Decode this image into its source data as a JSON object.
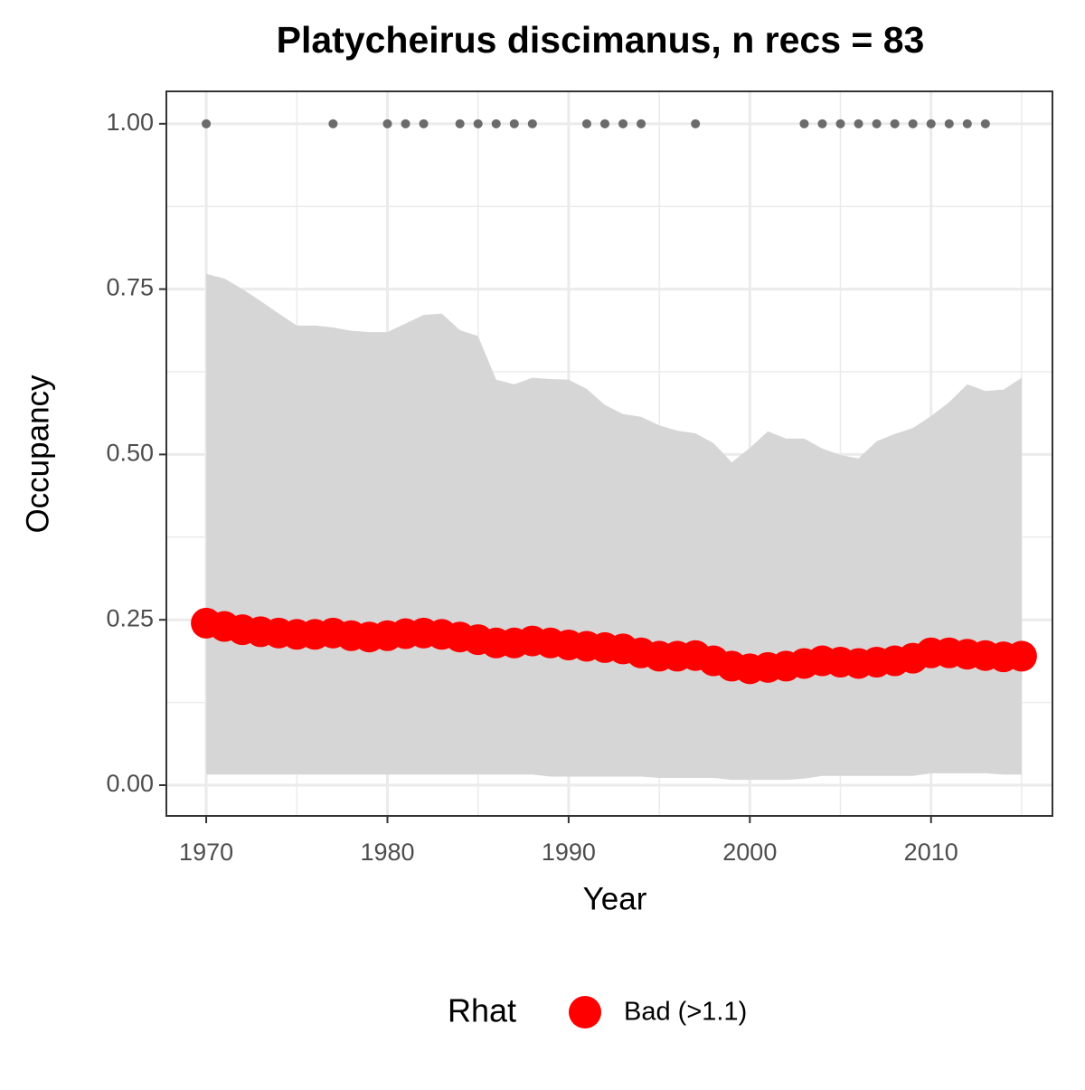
{
  "chart_data": {
    "type": "line",
    "title": "Platycheirus discimanus, n recs = 83",
    "x_label": "Year",
    "y_label": "Occupancy",
    "x": [
      1970,
      1971,
      1972,
      1973,
      1974,
      1975,
      1976,
      1977,
      1978,
      1979,
      1980,
      1981,
      1982,
      1983,
      1984,
      1985,
      1986,
      1987,
      1988,
      1989,
      1990,
      1991,
      1992,
      1993,
      1994,
      1995,
      1996,
      1997,
      1998,
      1999,
      2000,
      2001,
      2002,
      2003,
      2004,
      2005,
      2006,
      2007,
      2008,
      2009,
      2010,
      2011,
      2012,
      2013,
      2014,
      2015
    ],
    "series": [
      {
        "name": "Bad (>1.1)",
        "color": "#ff0000",
        "values": [
          0.245,
          0.24,
          0.235,
          0.232,
          0.23,
          0.228,
          0.228,
          0.23,
          0.226,
          0.224,
          0.226,
          0.229,
          0.23,
          0.228,
          0.224,
          0.22,
          0.215,
          0.215,
          0.218,
          0.215,
          0.212,
          0.21,
          0.208,
          0.206,
          0.2,
          0.195,
          0.195,
          0.196,
          0.188,
          0.18,
          0.176,
          0.178,
          0.18,
          0.184,
          0.188,
          0.186,
          0.184,
          0.186,
          0.188,
          0.192,
          0.2,
          0.2,
          0.198,
          0.196,
          0.194,
          0.195
        ],
        "upper": [
          0.773,
          0.766,
          0.75,
          0.732,
          0.713,
          0.695,
          0.695,
          0.692,
          0.687,
          0.685,
          0.685,
          0.698,
          0.711,
          0.713,
          0.688,
          0.679,
          0.613,
          0.606,
          0.616,
          0.614,
          0.613,
          0.599,
          0.575,
          0.561,
          0.557,
          0.544,
          0.536,
          0.532,
          0.517,
          0.488,
          0.51,
          0.535,
          0.524,
          0.524,
          0.509,
          0.499,
          0.494,
          0.52,
          0.531,
          0.54,
          0.558,
          0.579,
          0.606,
          0.596,
          0.598,
          0.616
        ],
        "lower": [
          0.016,
          0.016,
          0.016,
          0.016,
          0.016,
          0.016,
          0.016,
          0.016,
          0.016,
          0.016,
          0.016,
          0.016,
          0.016,
          0.016,
          0.016,
          0.016,
          0.016,
          0.016,
          0.016,
          0.013,
          0.013,
          0.013,
          0.013,
          0.013,
          0.013,
          0.011,
          0.011,
          0.011,
          0.011,
          0.008,
          0.008,
          0.008,
          0.008,
          0.01,
          0.014,
          0.014,
          0.014,
          0.014,
          0.014,
          0.014,
          0.018,
          0.018,
          0.018,
          0.018,
          0.016,
          0.016
        ]
      }
    ],
    "ribbon_color": "#d6d6d6",
    "records": {
      "x": [
        1970,
        1977,
        1980,
        1981,
        1982,
        1984,
        1985,
        1986,
        1987,
        1988,
        1991,
        1992,
        1993,
        1994,
        1997,
        2003,
        2004,
        2005,
        2006,
        2007,
        2008,
        2009,
        2010,
        2011,
        2012,
        2013
      ],
      "values": [
        1,
        1,
        1,
        1,
        1,
        1,
        1,
        1,
        1,
        1,
        1,
        1,
        1,
        1,
        1,
        1,
        1,
        1,
        1,
        1,
        1,
        1,
        1,
        1,
        1,
        1
      ],
      "color": "#6b6b6b"
    },
    "legend_title": "Rhat",
    "legend_position": "bottom",
    "xlim": [
      1967.8,
      2016.7
    ],
    "ylim": [
      -0.0465,
      1.049
    ],
    "xticks": [
      1970,
      1980,
      1990,
      2000,
      2010
    ],
    "yticks": [
      {
        "value": 0,
        "label": "0.00"
      },
      {
        "value": 0.25,
        "label": "0.25"
      },
      {
        "value": 0.5,
        "label": "0.50"
      },
      {
        "value": 0.75,
        "label": "0.75"
      },
      {
        "value": 1,
        "label": "1.00"
      }
    ],
    "x_minor_ticks": [
      1975,
      1985,
      1995,
      2005,
      2015
    ],
    "y_minor_ticks": [
      0.125,
      0.375,
      0.625,
      0.875
    ],
    "grid": true
  }
}
